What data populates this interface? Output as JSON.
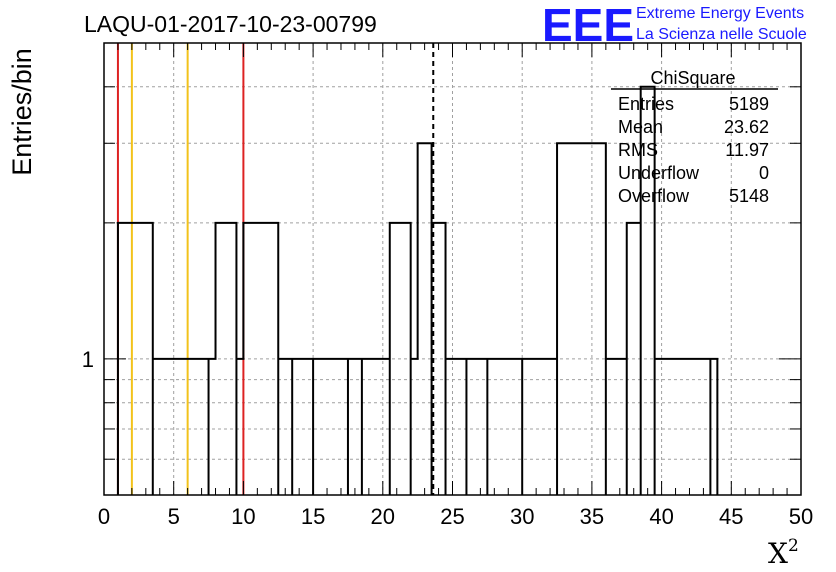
{
  "chart_data": {
    "type": "histogram",
    "title": "LAQU-01-2017-10-23-00799",
    "xlabel": "X",
    "xlabel_sup": "2",
    "ylabel": "Entries/bin",
    "xlim": [
      0,
      50
    ],
    "ylim": [
      0.5,
      5
    ],
    "yscale": "log",
    "grid": true,
    "xticks": [
      0,
      5,
      10,
      15,
      20,
      25,
      30,
      35,
      40,
      45,
      50
    ],
    "yticks": [
      1
    ],
    "bin_width": 0.5,
    "bins": [
      {
        "x": 1.0,
        "y": 2
      },
      {
        "x": 3.5,
        "y": 1
      },
      {
        "x": 7.5,
        "y": 1
      },
      {
        "x": 8.0,
        "y": 2
      },
      {
        "x": 9.5,
        "y": 1
      },
      {
        "x": 10.0,
        "y": 2
      },
      {
        "x": 12.5,
        "y": 1
      },
      {
        "x": 13.5,
        "y": 1
      },
      {
        "x": 15.0,
        "y": 1
      },
      {
        "x": 17.5,
        "y": 1
      },
      {
        "x": 18.5,
        "y": 1
      },
      {
        "x": 19.0,
        "y": 1
      },
      {
        "x": 20.5,
        "y": 2
      },
      {
        "x": 22.0,
        "y": 1
      },
      {
        "x": 22.5,
        "y": 3
      },
      {
        "x": 23.5,
        "y": 2
      },
      {
        "x": 24.5,
        "y": 1
      },
      {
        "x": 26.0,
        "y": 1
      },
      {
        "x": 27.5,
        "y": 1
      },
      {
        "x": 30.0,
        "y": 1
      },
      {
        "x": 30.5,
        "y": 1
      },
      {
        "x": 32.5,
        "y": 3
      },
      {
        "x": 36.0,
        "y": 1
      },
      {
        "x": 37.5,
        "y": 2
      },
      {
        "x": 38.5,
        "y": 4
      },
      {
        "x": 39.5,
        "y": 1
      },
      {
        "x": 40.0,
        "y": 1
      },
      {
        "x": 43.5,
        "y": 1
      }
    ],
    "markers": [
      {
        "x": 1.0,
        "color": "#dd2222",
        "style": "solid"
      },
      {
        "x": 2.0,
        "color": "#f2c21b",
        "style": "solid"
      },
      {
        "x": 6.0,
        "color": "#f2c21b",
        "style": "solid"
      },
      {
        "x": 10.0,
        "color": "#dd2222",
        "style": "solid"
      },
      {
        "x": 23.62,
        "color": "#000000",
        "style": "dashed"
      }
    ],
    "stats": {
      "title": "ChiSquare",
      "rows": [
        {
          "label": "Entries",
          "value": "5189"
        },
        {
          "label": "Mean",
          "value": "23.62"
        },
        {
          "label": "RMS",
          "value": "11.97"
        },
        {
          "label": "Underflow",
          "value": "0"
        },
        {
          "label": "Overflow",
          "value": "5148"
        }
      ]
    }
  },
  "logo": {
    "mark": "EEE",
    "line1": "Extreme Energy Events",
    "line2": "La Scienza nelle Scuole",
    "color": "#1a1aff"
  }
}
